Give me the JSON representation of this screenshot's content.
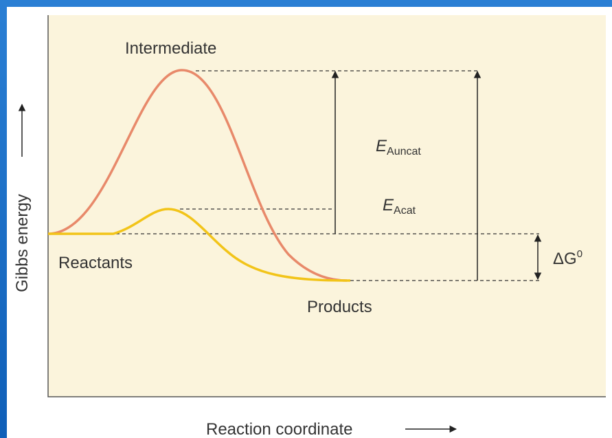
{
  "labels": {
    "intermediate": "Intermediate",
    "reactants": "Reactants",
    "products": "Products",
    "ea_uncat": {
      "main": "E",
      "sub": "Auncat"
    },
    "ea_cat": {
      "main": "E",
      "sub": "Acat"
    },
    "delta_g": {
      "main": "ΔG",
      "sup": "0"
    },
    "y_axis": "Gibbs energy",
    "x_axis": "Reaction coordinate"
  }
}
